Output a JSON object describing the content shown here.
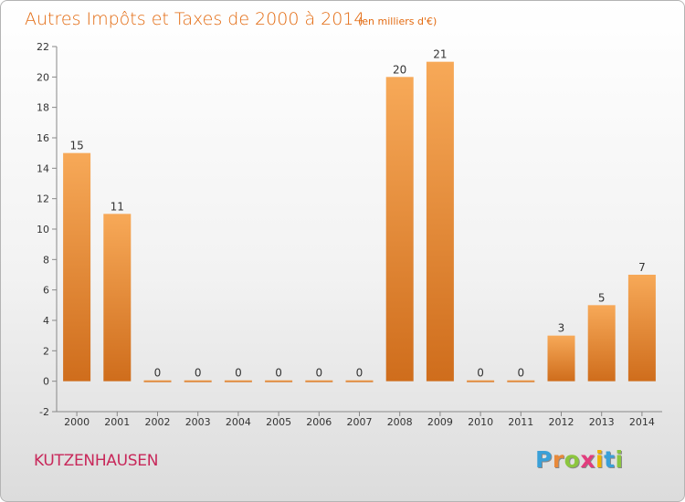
{
  "chart_data": {
    "type": "bar",
    "title": "Autres Impôts et Taxes de 2000 à 2014",
    "subtitle": "(en milliers d'€)",
    "categories": [
      "2000",
      "2001",
      "2002",
      "2003",
      "2004",
      "2005",
      "2006",
      "2007",
      "2008",
      "2009",
      "2010",
      "2011",
      "2012",
      "2013",
      "2014"
    ],
    "values": [
      15,
      11,
      0,
      0,
      0,
      0,
      0,
      0,
      20,
      21,
      0,
      0,
      3,
      5,
      7
    ],
    "value_labels": [
      "15",
      "11",
      "0",
      "0",
      "0",
      "0",
      "0",
      "0",
      "20",
      "21",
      "0",
      "0",
      "3",
      "5",
      "7"
    ],
    "yticks": [
      "-2",
      "0",
      "2",
      "4",
      "6",
      "8",
      "10",
      "12",
      "14",
      "16",
      "18",
      "20",
      "22"
    ],
    "ylim": [
      -2,
      22
    ],
    "xlabel": "",
    "ylabel": "",
    "grid": false,
    "bar_color": "#e8893a"
  },
  "commune": "KUTZENHAUSEN",
  "logo": {
    "text": "Proxiti",
    "letter_colors": [
      "#3aa0d8",
      "#e8893a",
      "#8cc63e",
      "#e23d7d",
      "#f0b400",
      "#3aa0d8",
      "#8cc63e"
    ]
  }
}
